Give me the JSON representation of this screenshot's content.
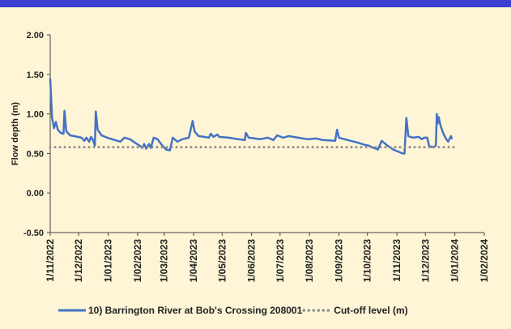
{
  "chart_data": {
    "type": "line",
    "ylabel": "Flow depth (m)",
    "xlim": [
      "2022-11-01",
      "2024-02-01"
    ],
    "xticks": [
      {
        "value": "2022-11-01",
        "label": "1/11/2022"
      },
      {
        "value": "2022-12-01",
        "label": "1/12/2022"
      },
      {
        "value": "2023-01-01",
        "label": "1/01/2023"
      },
      {
        "value": "2023-02-01",
        "label": "1/02/2023"
      },
      {
        "value": "2023-03-01",
        "label": "1/03/2023"
      },
      {
        "value": "2023-04-01",
        "label": "1/04/2023"
      },
      {
        "value": "2023-05-01",
        "label": "1/05/2023"
      },
      {
        "value": "2023-06-01",
        "label": "1/06/2023"
      },
      {
        "value": "2023-07-01",
        "label": "1/07/2023"
      },
      {
        "value": "2023-08-01",
        "label": "1/08/2023"
      },
      {
        "value": "2023-09-01",
        "label": "1/09/2023"
      },
      {
        "value": "2023-10-01",
        "label": "1/10/2023"
      },
      {
        "value": "2023-11-01",
        "label": "1/11/2023"
      },
      {
        "value": "2023-12-01",
        "label": "1/12/2023"
      },
      {
        "value": "2024-01-01",
        "label": "1/01/2024"
      },
      {
        "value": "2024-02-01",
        "label": "1/02/2024"
      }
    ],
    "ylim": [
      -0.5,
      2.0
    ],
    "yticks": [
      {
        "value": -0.5,
        "label": "-0.50"
      },
      {
        "value": 0,
        "label": "0.00"
      },
      {
        "value": 0.5,
        "label": "0.50"
      },
      {
        "value": 1.0,
        "label": "1.00"
      },
      {
        "value": 1.5,
        "label": "1.50"
      },
      {
        "value": 2.0,
        "label": "2.00"
      }
    ],
    "grid": false,
    "legend": "bottom",
    "series": [
      {
        "name": "10) Barrington River at Bob's Crossing 208001",
        "color": "#4472c4",
        "style": "solid",
        "x": [
          "2022-11-01",
          "2022-11-03",
          "2022-11-05",
          "2022-11-07",
          "2022-11-09",
          "2022-11-12",
          "2022-11-15",
          "2022-11-16",
          "2022-11-18",
          "2022-11-22",
          "2022-11-30",
          "2022-12-04",
          "2022-12-07",
          "2022-12-09",
          "2022-12-12",
          "2022-12-14",
          "2022-12-16",
          "2022-12-18",
          "2022-12-19",
          "2022-12-21",
          "2022-12-25",
          "2022-12-31",
          "2023-01-08",
          "2023-01-14",
          "2023-01-18",
          "2023-01-24",
          "2023-01-30",
          "2023-02-03",
          "2023-02-06",
          "2023-02-08",
          "2023-02-10",
          "2023-02-13",
          "2023-02-15",
          "2023-02-18",
          "2023-02-22",
          "2023-02-27",
          "2023-03-03",
          "2023-03-07",
          "2023-03-10",
          "2023-03-15",
          "2023-03-20",
          "2023-03-27",
          "2023-03-31",
          "2023-04-02",
          "2023-04-06",
          "2023-04-12",
          "2023-04-17",
          "2023-04-19",
          "2023-04-22",
          "2023-04-26",
          "2023-04-28",
          "2023-05-08",
          "2023-05-18",
          "2023-05-25",
          "2023-05-26",
          "2023-05-29",
          "2023-06-10",
          "2023-06-18",
          "2023-06-24",
          "2023-06-28",
          "2023-07-04",
          "2023-07-10",
          "2023-07-20",
          "2023-07-30",
          "2023-08-08",
          "2023-08-15",
          "2023-08-28",
          "2023-08-30",
          "2023-09-01",
          "2023-09-10",
          "2023-09-20",
          "2023-09-28",
          "2023-10-02",
          "2023-10-08",
          "2023-10-12",
          "2023-10-16",
          "2023-10-22",
          "2023-10-28",
          "2023-11-03",
          "2023-11-07",
          "2023-11-09",
          "2023-11-11",
          "2023-11-13",
          "2023-11-18",
          "2023-11-24",
          "2023-11-27",
          "2023-11-30",
          "2023-12-03",
          "2023-12-05",
          "2023-12-10",
          "2023-12-12",
          "2023-12-13",
          "2023-12-14",
          "2023-12-15",
          "2023-12-17",
          "2023-12-20",
          "2023-12-23",
          "2023-12-25",
          "2023-12-27",
          "2023-12-28",
          "2023-12-29"
        ],
        "values": [
          1.45,
          0.95,
          0.82,
          0.9,
          0.8,
          0.76,
          0.75,
          1.04,
          0.78,
          0.73,
          0.71,
          0.7,
          0.66,
          0.7,
          0.65,
          0.71,
          0.67,
          0.6,
          1.03,
          0.8,
          0.73,
          0.7,
          0.67,
          0.65,
          0.7,
          0.68,
          0.63,
          0.6,
          0.57,
          0.62,
          0.56,
          0.62,
          0.57,
          0.7,
          0.68,
          0.6,
          0.55,
          0.54,
          0.7,
          0.65,
          0.68,
          0.7,
          0.91,
          0.78,
          0.72,
          0.71,
          0.7,
          0.75,
          0.71,
          0.74,
          0.71,
          0.7,
          0.68,
          0.67,
          0.76,
          0.7,
          0.68,
          0.7,
          0.67,
          0.73,
          0.7,
          0.72,
          0.7,
          0.68,
          0.69,
          0.67,
          0.66,
          0.8,
          0.7,
          0.67,
          0.64,
          0.61,
          0.6,
          0.57,
          0.55,
          0.66,
          0.6,
          0.55,
          0.52,
          0.5,
          0.5,
          0.95,
          0.72,
          0.7,
          0.71,
          0.68,
          0.7,
          0.7,
          0.59,
          0.58,
          0.6,
          1.0,
          0.88,
          0.96,
          0.85,
          0.75,
          0.68,
          0.65,
          0.7,
          0.72,
          0.68
        ]
      },
      {
        "name": "Cut-off level (m)",
        "color": "#8c8c8c",
        "style": "dotted",
        "x": [
          "2022-11-01",
          "2024-01-01"
        ],
        "values": [
          0.58,
          0.58
        ]
      }
    ]
  }
}
